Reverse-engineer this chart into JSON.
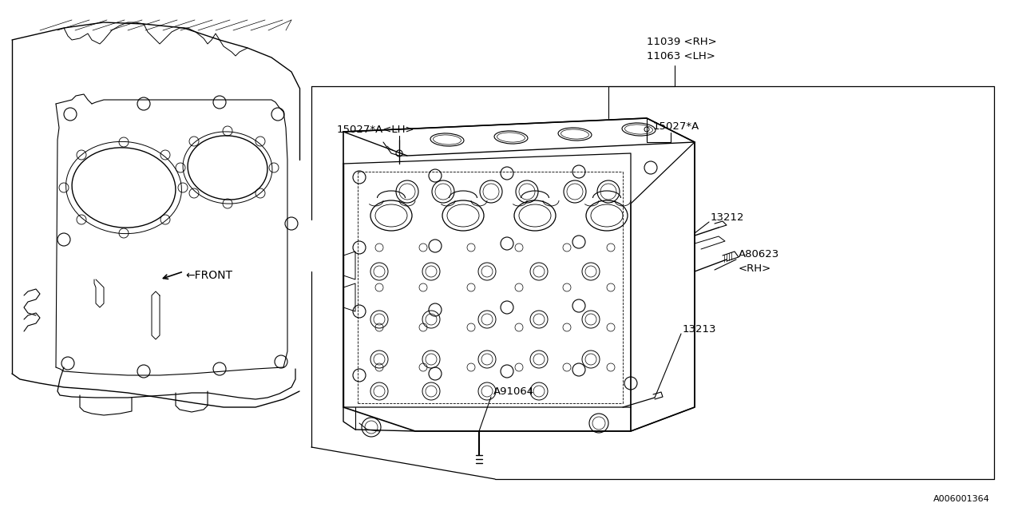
{
  "bg_color": "#ffffff",
  "line_color": "#000000",
  "part_number": "A006001364",
  "labels": {
    "11039": "11039 <RH>",
    "11063": "11063 <LH>",
    "15027a_lh": "15027*A<LH>",
    "15027a": "15027*A",
    "13212": "13212",
    "a80623": "A80623",
    "a80623_rh": "<RH>",
    "13213": "13213",
    "a91064": "A91064",
    "front": "←FRONT"
  },
  "font_size": 9.5
}
